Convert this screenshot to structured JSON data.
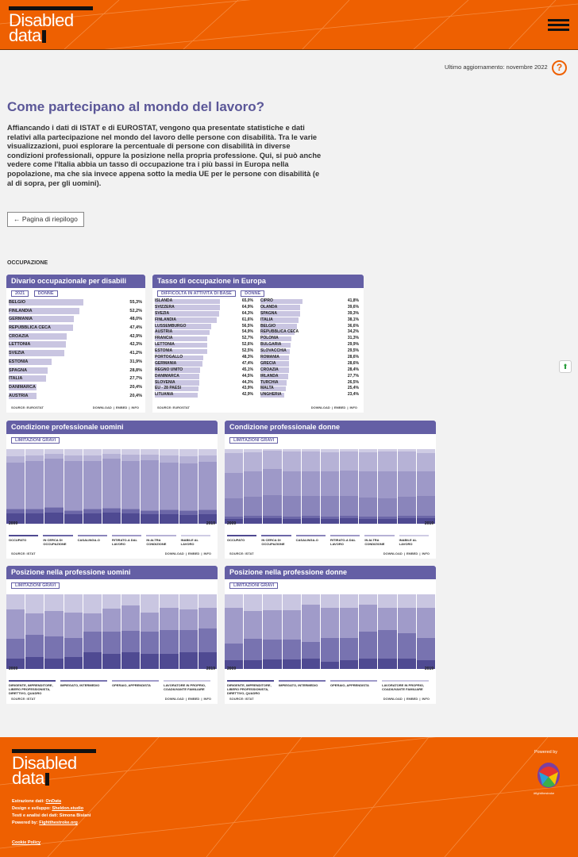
{
  "header": {
    "logo_line1": "Disabled",
    "logo_line2": "data"
  },
  "update": {
    "label": "Ultimo aggiornamento: novembre 2022"
  },
  "help_icon": "question-circle-icon",
  "page": {
    "title": "Come partecipano al mondo del lavoro?",
    "intro": "Affiancando i dati di ISTAT e di EUROSTAT, vengono qua presentate statistiche e dati relativi alla partecipazione nel mondo del lavoro delle persone con disabilità. Tra le varie visualizzazioni, puoi esplorare la percentuale di persone con disabilità in diverse condizioni professionali, oppure la posizione nella propria professione. Qui, si può anche vedere come l'Italia abbia un tasso di occupazione tra i più bassi in Europa nella popolazione, ma che sia invece appena sotto la media UE per le persone con disabilità (e al di sopra, per gli uomini).",
    "back_button": "← Pagina di riepilogo",
    "section": "OCCUPAZIONE"
  },
  "common": {
    "download": "DOWNLOAD",
    "embed": "EMBED",
    "info": "INFO",
    "year_start": "2009",
    "year_end": "2019"
  },
  "chart_data": [
    {
      "type": "bar",
      "title": "Divario occupazionale per disabili",
      "filters": [
        "2021",
        "DONNE"
      ],
      "source": "SOURCE: EUROSTAT",
      "categories": [
        "BELGIO",
        "FINLANDIA",
        "GERMANIA",
        "REPUBBLICA CECA",
        "CROAZIA",
        "LETTONIA",
        "SVEZIA",
        "ESTONIA",
        "SPAGNA",
        "ITALIA",
        "DANIMARCA",
        "AUSTRIA"
      ],
      "labels": [
        "55,3%",
        "52,2%",
        "48,0%",
        "47,4%",
        "42,9%",
        "42,3%",
        "41,2%",
        "31,9%",
        "28,8%",
        "27,7%",
        "20,4%",
        "20,4%"
      ],
      "values": [
        55.3,
        52.2,
        48.0,
        47.4,
        42.9,
        42.3,
        41.2,
        31.9,
        28.8,
        27.7,
        20.4,
        20.4
      ]
    },
    {
      "type": "bar",
      "title": "Tasso di occupazione in Europa",
      "filters": [
        "DIFFICOLTÀ IN ATTIVITÀ DI BASE",
        "DONNE"
      ],
      "source": "SOURCE: EUROSTAT",
      "categories": [
        "ISLANDA",
        "SVIZZERA",
        "SVEZIA",
        "FINLANDIA",
        "LUSSEMBURGO",
        "AUSTRIA",
        "FRANCIA",
        "LETTONIA",
        "ESTONIA",
        "PORTOGALLO",
        "GERMANIA",
        "REGNO UNITO",
        "DANIMARCA",
        "SLOVENIA",
        "EU - 28 PAESI",
        "LITUANIA",
        "CIPRO",
        "OLANDA",
        "SPAGNA",
        "ITALIA",
        "BELGIO",
        "REPUBBLICA CECA",
        "POLONIA",
        "BULGARIA",
        "SLOVACCHIA",
        "ROMANIA",
        "GRECIA",
        "CROAZIA",
        "IRLANDA",
        "TURCHIA",
        "MALTA",
        "UNGHERIA"
      ],
      "labels": [
        "65,0%",
        "64,9%",
        "64,3%",
        "61,6%",
        "56,5%",
        "54,9%",
        "52,7%",
        "52,6%",
        "52,5%",
        "48,3%",
        "47,4%",
        "45,1%",
        "44,5%",
        "44,3%",
        "43,9%",
        "42,9%",
        "41,8%",
        "39,6%",
        "39,3%",
        "38,1%",
        "36,6%",
        "34,2%",
        "31,3%",
        "29,9%",
        "29,5%",
        "28,6%",
        "28,6%",
        "28,4%",
        "27,7%",
        "26,5%",
        "25,4%",
        "23,4%"
      ],
      "values": [
        65.0,
        64.9,
        64.3,
        61.6,
        56.5,
        54.9,
        52.7,
        52.6,
        52.5,
        48.3,
        47.4,
        45.1,
        44.5,
        44.3,
        43.9,
        42.9,
        41.8,
        39.6,
        39.3,
        38.1,
        36.6,
        34.2,
        31.3,
        29.9,
        29.5,
        28.6,
        28.6,
        28.4,
        27.7,
        26.5,
        25.4,
        23.4
      ]
    },
    {
      "type": "bar",
      "title": "Condizione professionale uomini",
      "filter": "LIMITAZIONI GRAVI",
      "source": "SOURCE: ISTAT",
      "categories": [
        "2009",
        "2010",
        "2011",
        "2012",
        "2013",
        "2014",
        "2015",
        "2016",
        "2017",
        "2018",
        "2019"
      ],
      "legend": [
        "OCCUPATO",
        "IN CERCA DI OCCUPAZIONE",
        "CASALINGA-O",
        "RITIRATO-A DAL LAVORO",
        "IN ALTRA CONDIZIONE",
        "INABILE AL LAVORO"
      ],
      "colors": [
        "#4f4a92",
        "#6c67a8",
        "#8a85bb",
        "#9e99c8",
        "#b6b2d6",
        "#cfcce4"
      ],
      "series": [
        [
          14,
          14,
          15,
          13,
          14,
          15,
          14,
          13,
          13,
          12,
          13
        ],
        [
          5,
          5,
          6,
          4,
          5,
          5,
          5,
          4,
          5,
          5,
          5
        ],
        [
          1,
          1,
          1,
          1,
          1,
          1,
          1,
          1,
          1,
          1,
          1
        ],
        [
          62,
          64,
          65,
          66,
          64,
          66,
          64,
          67,
          63,
          63,
          64
        ],
        [
          8,
          7,
          7,
          8,
          8,
          7,
          9,
          8,
          9,
          9,
          9
        ],
        [
          10,
          9,
          6,
          8,
          8,
          6,
          7,
          7,
          9,
          10,
          8
        ]
      ]
    },
    {
      "type": "bar",
      "title": "Condizione professionale donne",
      "filter": "LIMITAZIONI GRAVI",
      "source": "SOURCE: ISTAT",
      "categories": [
        "2009",
        "2010",
        "2011",
        "2012",
        "2013",
        "2014",
        "2015",
        "2016",
        "2017",
        "2018",
        "2019"
      ],
      "legend": [
        "OCCUPATO",
        "IN CERCA DI OCCUPAZIONE",
        "CASALINGA-O",
        "RITIRATO-A DAL LAVORO",
        "IN ALTRA CONDIZIONE",
        "INABILE AL LAVORO"
      ],
      "colors": [
        "#4f4a92",
        "#6c67a8",
        "#8a85bb",
        "#9e99c8",
        "#b6b2d6",
        "#cfcce4"
      ],
      "series": [
        [
          6,
          7,
          7,
          6,
          7,
          6,
          7,
          6,
          6,
          7,
          7
        ],
        [
          4,
          4,
          4,
          4,
          4,
          4,
          4,
          4,
          4,
          4,
          4
        ],
        [
          24,
          25,
          27,
          27,
          26,
          27,
          26,
          25,
          24,
          25,
          26
        ],
        [
          34,
          34,
          35,
          33,
          33,
          33,
          34,
          35,
          36,
          34,
          33
        ],
        [
          27,
          26,
          25,
          27,
          27,
          26,
          26,
          26,
          27,
          27,
          25
        ],
        [
          5,
          4,
          2,
          3,
          3,
          4,
          3,
          4,
          3,
          3,
          5
        ]
      ]
    },
    {
      "type": "bar",
      "title": "Posizione nella professione uomini",
      "filter": "LIMITAZIONI GRAVI",
      "source": "SOURCE: ISTAT",
      "categories": [
        "2009",
        "2010",
        "2011",
        "2012",
        "2013",
        "2014",
        "2015",
        "2016",
        "2017",
        "2018",
        "2019"
      ],
      "legend": [
        "DIRIGENTE, IMPRENDITORE, LIBERO PROFESSIONISTA, DIRETTIVO, QUADRO",
        "IMPIEGATO, INTERMEDIO",
        "OPERAIO, APPRENDISTA",
        "LAVORATORE IN PROPRIO, COADIUVANTE FAMILIARE"
      ],
      "colors": [
        "#4f4a92",
        "#7873b0",
        "#a09bc9",
        "#c9c6e1"
      ],
      "series": [
        [
          14,
          16,
          14,
          16,
          22,
          20,
          22,
          20,
          20,
          22,
          22
        ],
        [
          26,
          30,
          30,
          26,
          28,
          30,
          29,
          30,
          32,
          30,
          32
        ],
        [
          40,
          28,
          34,
          34,
          24,
          31,
          34,
          26,
          30,
          28,
          28
        ],
        [
          20,
          26,
          22,
          24,
          26,
          19,
          15,
          24,
          18,
          20,
          18
        ]
      ]
    },
    {
      "type": "bar",
      "title": "Posizione nella professione donne",
      "filter": "LIMITAZIONI GRAVI",
      "source": "SOURCE: ISTAT",
      "categories": [
        "2009",
        "2010",
        "2011",
        "2012",
        "2013",
        "2014",
        "2015",
        "2016",
        "2017",
        "2018",
        "2019"
      ],
      "legend": [
        "DIRIGENTE, IMPRENDITORE, LIBERO PROFESSIONISTA, DIRETTIVO, QUADRO",
        "IMPIEGATO, INTERMEDIO",
        "OPERAIO, APPRENDISTA",
        "LAVORATORE IN PROPRIO, COADIUVANTE FAMILIARE"
      ],
      "colors": [
        "#4f4a92",
        "#7873b0",
        "#a09bc9",
        "#c9c6e1"
      ],
      "series": [
        [
          12,
          12,
          13,
          13,
          14,
          10,
          12,
          14,
          14,
          14,
          12
        ],
        [
          22,
          28,
          26,
          26,
          22,
          32,
          30,
          36,
          38,
          34,
          30
        ],
        [
          48,
          38,
          40,
          40,
          50,
          40,
          40,
          36,
          30,
          34,
          40
        ],
        [
          18,
          22,
          21,
          21,
          14,
          18,
          18,
          14,
          18,
          18,
          18
        ]
      ]
    }
  ],
  "footer": {
    "logo_line1": "Disabled",
    "logo_line2": "data",
    "credit1_label": "Estrazione dati: ",
    "credit1_link": "OnData",
    "credit2_label": "Design e sviluppo: ",
    "credit2_link": "Sheldon.studio",
    "credit3": "Testi e analisi dei dati: Simona Bisiani",
    "credit4_label": "Powered by: ",
    "credit4_link": "Fightthestroke.org",
    "cookie": "Cookie Policy",
    "powered_by": "Powered by",
    "powered_tag": "#fightthestroke"
  }
}
